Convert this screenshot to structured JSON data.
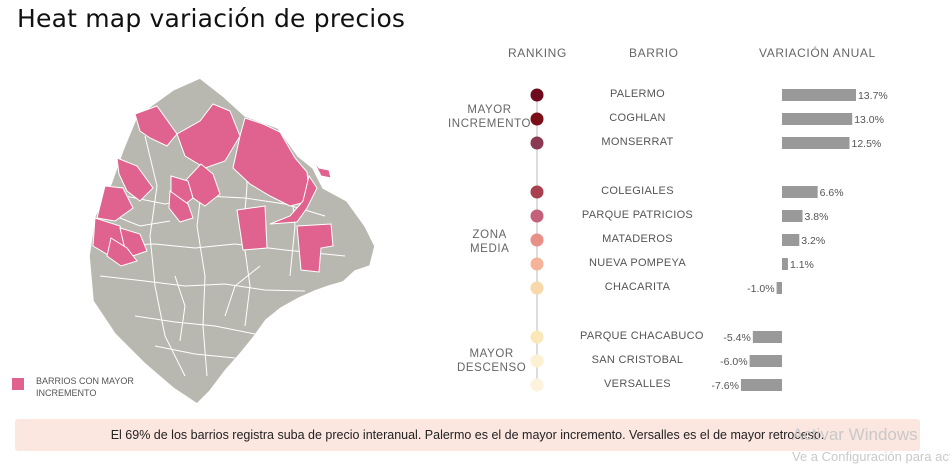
{
  "title": "Heat map variación de precios",
  "headers": {
    "ranking": "RANKING",
    "barrio": "BARRIO",
    "variacion": "VARIACIÓN ANUAL"
  },
  "legend": {
    "label": "BARRIOS CON MAYOR INCREMENTO",
    "color": "#e0628e"
  },
  "map_colors": {
    "base": "#b9b8b0",
    "highlight": "#e0628e",
    "border": "#ffffff"
  },
  "groups": [
    {
      "label": "MAYOR INCREMENTO"
    },
    {
      "label": "ZONA MEDIA"
    },
    {
      "label": "MAYOR DESCENSO"
    }
  ],
  "chart_data": {
    "type": "bar",
    "categories": [
      "PALERMO",
      "COGHLAN",
      "MONSERRAT",
      "COLEGIALES",
      "PARQUE PATRICIOS",
      "MATADEROS",
      "NUEVA POMPEYA",
      "CHACARITA",
      "PARQUE CHACABUCO",
      "SAN CRISTOBAL",
      "VERSALLES"
    ],
    "values": [
      13.7,
      13.0,
      12.5,
      6.6,
      3.8,
      3.2,
      1.1,
      -1.0,
      -5.4,
      -6.0,
      -7.6
    ],
    "labels": [
      "13.7%",
      "13.0%",
      "12.5%",
      "6.6%",
      "3.8%",
      "3.2%",
      "1.1%",
      "-1.0%",
      "-5.4%",
      "-6.0%",
      "-7.6%"
    ],
    "dot_colors": [
      "#6e0a1c",
      "#7a0f18",
      "#8a3a52",
      "#a8404f",
      "#c46079",
      "#e88f86",
      "#f5b49a",
      "#f8d8a8",
      "#fbe8b8",
      "#fdf1d4",
      "#fdf3dc"
    ],
    "bar_color": "#999999",
    "title": "",
    "xlabel": "",
    "ylabel": "VARIACIÓN ANUAL"
  },
  "footer": "El 69% de los barrios registra suba de precio interanual. Palermo es el de mayor incremento. Versalles es el de mayor retroceso.",
  "watermark": {
    "title": "Activar Windows",
    "subtitle": "Ve a Configuración para activar Windows."
  }
}
